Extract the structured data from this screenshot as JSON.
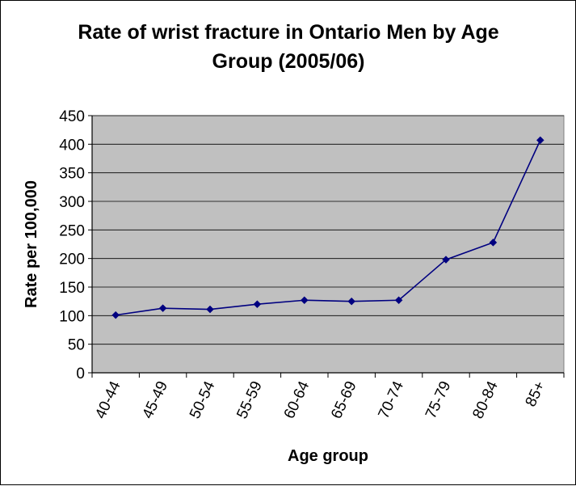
{
  "chart_data": {
    "type": "line",
    "title_lines": [
      "Rate of wrist fracture in Ontario Men by Age",
      "Group (2005/06)"
    ],
    "xlabel": "Age group",
    "ylabel": "Rate per 100,000",
    "categories": [
      "40-44",
      "45-49",
      "50-54",
      "55-59",
      "60-64",
      "65-69",
      "70-74",
      "75-79",
      "80-84",
      "85+"
    ],
    "series": [
      {
        "values": [
          101,
          113,
          111,
          120,
          127,
          125,
          127,
          198,
          228,
          407
        ]
      }
    ],
    "ylim": [
      0,
      450
    ],
    "yticks": [
      0,
      50,
      100,
      150,
      200,
      250,
      300,
      350,
      400,
      450
    ],
    "grid": true,
    "legend": "none",
    "colors": {
      "line": "#000080",
      "marker": "#000080",
      "plot_background": "#c0c0c0",
      "grid": "#000000"
    }
  }
}
